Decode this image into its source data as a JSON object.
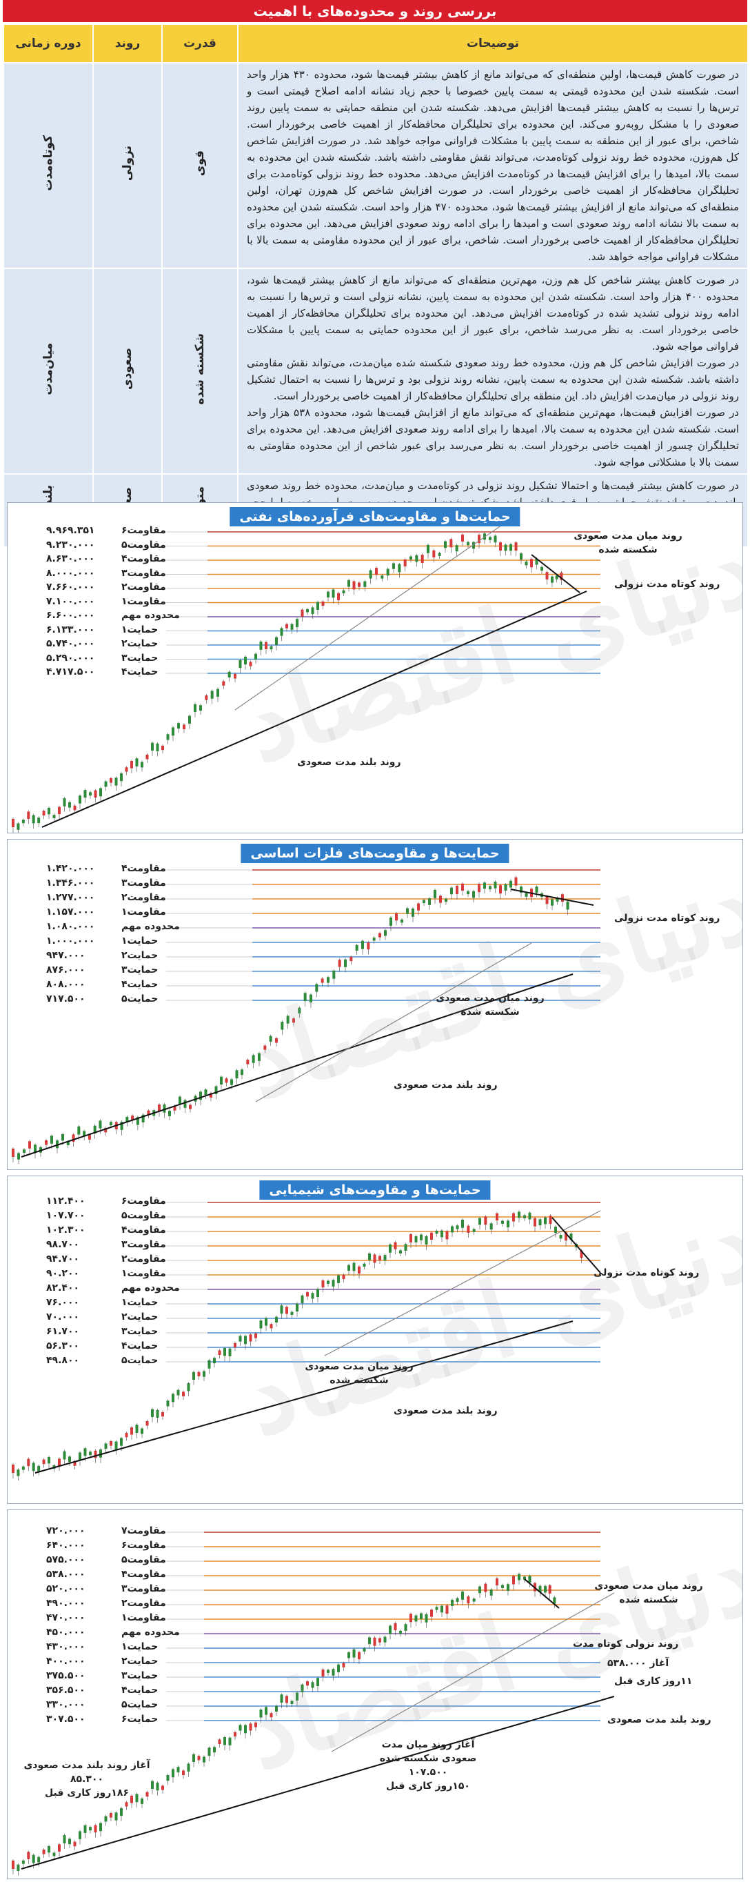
{
  "header": "بررسی روند و محدوده‌های با اهمیت",
  "table": {
    "columns": [
      "دوره زمانی",
      "روند",
      "قدرت",
      "توضیحات"
    ],
    "rows": [
      {
        "period": "کوتاه‌مدت",
        "trend": "نزولی",
        "strength": "قوی",
        "desc": "در صورت کاهش قیمت‌ها، اولین منطقه‌ای که می‌تواند مانع از کاهش بیشتر قیمت‌ها شود، محدوده ۴۳۰ هزار واحد است. شکسته شدن این محدوده قیمتی به سمت پایین خصوصا با حجم زیاد نشانه ادامه اصلاح قیمتی است و ترس‌ها را نسبت به کاهش بیشتر قیمت‌ها افزایش می‌دهد. شکسته شدن این منطقه حمایتی به سمت پایین روند صعودی را با مشکل روبه‌رو می‌کند. این محدوده برای تحلیلگران محافظه‌کار از اهمیت خاصی برخوردار است. شاخص، برای عبور از این منطقه به سمت پایین با مشکلات فراوانی مواجه خواهد شد. در صورت افزایش شاخص کل هم‌وزن، محدوده خط روند نزولی کوتاه‌مدت، می‌تواند نقش مقاومتی داشته باشد. شکسته شدن این محدوده به سمت بالا، امیدها را برای افزایش قیمت‌ها در کوتاه‌مدت افزایش می‌دهد. محدوده خط روند نزولی کوتاه‌مدت برای تحلیلگران محافظه‌کار از اهمیت خاصی برخوردار است. در صورت افزایش شاخص کل هم‌وزن تهران، اولین منطقه‌ای که می‌تواند مانع از افزایش بیشتر قیمت‌ها شود، محدوده ۴۷۰ هزار واحد است. شکسته شدن این محدوده به سمت بالا نشانه ادامه روند صعودی است و امیدها را برای ادامه روند صعودی افزایش می‌دهد. این محدوده برای تحلیلگران محافظه‌کار از اهمیت خاصی برخوردار است. شاخص، برای عبور از این محدوده مقاومتی به سمت بالا با مشکلات فراوانی مواجه خواهد شد."
      },
      {
        "period": "میان‌مدت",
        "trend": "صعودی",
        "strength": "شکسته شده",
        "desc": "در صورت کاهش بیشتر شاخص کل هم وزن، مهم‌ترین منطقه‌ای که می‌تواند مانع از کاهش بیشتر قیمت‌ها شود، محدوده ۴۰۰ هزار واحد است. شکسته شدن این محدوده به سمت پایین، نشانه نزولی است و ترس‌ها را نسبت به ادامه روند نزولی تشدید شده در کوتاه‌مدت افزایش می‌دهد. این محدوده برای تحلیلگران محافظه‌کار از اهمیت خاصی برخوردار است. به نظر می‌رسد شاخص، برای عبور از این محدوده حمایتی به سمت پایین با مشکلات فراوانی مواجه شود.\nدر صورت افزایش شاخص کل هم وزن، محدوده خط روند صعودی شکسته شده میان‌مدت، می‌تواند نقش مقاومتی داشته باشد. شکسته شدن این محدوده به سمت پایین، نشانه روند نزولی بود و ترس‌ها را نسبت به احتمال تشکیل روند نزولی در میان‌مدت افزایش داد. این منطقه برای تحلیلگران محافظه‌کار از اهمیت خاصی برخوردار است.\nدر صورت افزایش قیمت‌ها، مهم‌ترین منطقه‌ای که می‌تواند مانع از افزایش قیمت‌ها شود، محدوده ۵۳۸ هزار واحد است. شکسته شدن این محدوده به سمت بالا، امیدها را برای ادامه روند صعودی افزایش می‌دهد. این محدوده برای تحلیلگران چسور از اهمیت خاصی برخوردار است. به نظر می‌رسد برای عبور شاخص از این محدوده مقاومتی به سمت بالا با مشکلاتی مواجه شود."
      },
      {
        "period": "بلندمدت",
        "trend": "صعودی",
        "strength": "متوسط",
        "desc": "در صورت کاهش بیشتر قیمت‌ها و احتمالا تشکیل روند نزولی در کوتاه‌مدت و میان‌مدت، محدوده خط روند صعودی بلندمدت می‌تواند نقش حمایتی بسیار قوی داشته باشد. شکسته شدن این محدوده به سمت پایین مخصوصا با حجم زیاد نشانه نزولی خواهد بود و ترس‌ها را نسبت به ادامه‌دار بودن روند نزولی افزایش می‌دهد. این منطقه برای تحلیلگران محافظه‌کار از اهمیت خاصی برخوردار است."
      }
    ]
  },
  "watermark": "دنیای اقتصاد",
  "colors": {
    "header_bg": "#d81e2a",
    "th_bg": "#f7cf3b",
    "td_bg": "#dde7f4",
    "title_bg": "#2f7ecb",
    "resistance": "#e58a2b",
    "resistance_top": "#c23b2b",
    "support": "#4f8fd0",
    "key_zone": "#7b5aa6"
  },
  "charts": [
    {
      "title": "حمایت‌ها و مقاومت‌های فرآورده‌های نفتی",
      "levels": [
        {
          "label": "مقاومت۶",
          "value": "۹.۹۶۹.۳۵۱",
          "kind": "res"
        },
        {
          "label": "مقاومت۵",
          "value": "۹.۲۳۰.۰۰۰",
          "kind": "res"
        },
        {
          "label": "مقاومت۴",
          "value": "۸.۶۳۰.۰۰۰",
          "kind": "res"
        },
        {
          "label": "مقاومت۳",
          "value": "۸.۰۰۰.۰۰۰",
          "kind": "res"
        },
        {
          "label": "مقاومت۲",
          "value": "۷.۶۶۰.۰۰۰",
          "kind": "res"
        },
        {
          "label": "مقاومت۱",
          "value": "۷.۱۰۰.۰۰۰",
          "kind": "res"
        },
        {
          "label": "محدوده مهم",
          "value": "۶.۶۰۰.۰۰۰",
          "kind": "key"
        },
        {
          "label": "حمایت۱",
          "value": "۶.۱۳۳.۰۰۰",
          "kind": "sup"
        },
        {
          "label": "حمایت۲",
          "value": "۵.۷۴۰.۰۰۰",
          "kind": "sup"
        },
        {
          "label": "حمایت۳",
          "value": "۵.۲۹۰.۰۰۰",
          "kind": "sup"
        },
        {
          "label": "حمایت۴",
          "value": "۴.۷۱۷.۵۰۰",
          "kind": "sup"
        }
      ],
      "annotations": [
        "روند میان مدت صعودی شکسته شده",
        "روند کوتاه مدت نزولی",
        "روند بلند مدت صعودی"
      ]
    },
    {
      "title": "حمایت‌ها و مقاومت‌های فلزات اساسی",
      "levels": [
        {
          "label": "مقاومت۴",
          "value": "۱.۴۲۰.۰۰۰",
          "kind": "res"
        },
        {
          "label": "مقاومت۳",
          "value": "۱.۳۴۶.۰۰۰",
          "kind": "res"
        },
        {
          "label": "مقاومت۲",
          "value": "۱.۲۷۷.۰۰۰",
          "kind": "res"
        },
        {
          "label": "مقاومت۱",
          "value": "۱.۱۵۷.۰۰۰",
          "kind": "res"
        },
        {
          "label": "محدوده مهم",
          "value": "۱.۰۸۰.۰۰۰",
          "kind": "key"
        },
        {
          "label": "حمایت۱",
          "value": "۱.۰۰۰.۰۰۰",
          "kind": "sup"
        },
        {
          "label": "حمایت۲",
          "value": "۹۴۷.۰۰۰",
          "kind": "sup"
        },
        {
          "label": "حمایت۳",
          "value": "۸۷۶.۰۰۰",
          "kind": "sup"
        },
        {
          "label": "حمایت۴",
          "value": "۸۰۸.۰۰۰",
          "kind": "sup"
        },
        {
          "label": "حمایت۵",
          "value": "۷۱۷.۵۰۰",
          "kind": "sup"
        }
      ],
      "annotations": [
        "روند کوتاه مدت نزولی",
        "روند میان مدت صعودی شکسته شده",
        "روند بلند مدت صعودی"
      ]
    },
    {
      "title": "حمایت‌ها و مقاومت‌های شیمیایی",
      "levels": [
        {
          "label": "مقاومت۶",
          "value": "۱۱۲.۴۰۰",
          "kind": "res"
        },
        {
          "label": "مقاومت۵",
          "value": "۱۰۷.۷۰۰",
          "kind": "res"
        },
        {
          "label": "مقاومت۴",
          "value": "۱۰۲.۳۰۰",
          "kind": "res"
        },
        {
          "label": "مقاومت۳",
          "value": "۹۸.۷۰۰",
          "kind": "res"
        },
        {
          "label": "مقاومت۲",
          "value": "۹۴.۷۰۰",
          "kind": "res"
        },
        {
          "label": "مقاومت۱",
          "value": "۹۰.۲۰۰",
          "kind": "res"
        },
        {
          "label": "محدوده مهم",
          "value": "۸۲.۴۰۰",
          "kind": "key"
        },
        {
          "label": "حمایت۱",
          "value": "۷۶.۰۰۰",
          "kind": "sup"
        },
        {
          "label": "حمایت۲",
          "value": "۷۰.۰۰۰",
          "kind": "sup"
        },
        {
          "label": "حمایت۳",
          "value": "۶۱.۷۰۰",
          "kind": "sup"
        },
        {
          "label": "حمایت۴",
          "value": "۵۶.۳۰۰",
          "kind": "sup"
        },
        {
          "label": "حمایت۵",
          "value": "۴۹.۸۰۰",
          "kind": "sup"
        }
      ],
      "annotations": [
        "روند کوتاه مدت نزولی",
        "روند میان مدت صعودی شکسته شده",
        "روند بلند مدت صعودی"
      ]
    },
    {
      "title": "",
      "levels": [
        {
          "label": "مقاومت۷",
          "value": "۷۲۰.۰۰۰",
          "kind": "res"
        },
        {
          "label": "مقاومت۶",
          "value": "۶۴۰.۰۰۰",
          "kind": "res"
        },
        {
          "label": "مقاومت۵",
          "value": "۵۷۵.۰۰۰",
          "kind": "res"
        },
        {
          "label": "مقاومت۴",
          "value": "۵۳۸.۰۰۰",
          "kind": "res"
        },
        {
          "label": "مقاومت۳",
          "value": "۵۲۰.۰۰۰",
          "kind": "res"
        },
        {
          "label": "مقاومت۲",
          "value": "۴۹۰.۰۰۰",
          "kind": "res"
        },
        {
          "label": "مقاومت۱",
          "value": "۴۷۰.۰۰۰",
          "kind": "res"
        },
        {
          "label": "محدوده مهم",
          "value": "۴۵۰.۰۰۰",
          "kind": "key"
        },
        {
          "label": "حمایت۱",
          "value": "۴۳۰.۰۰۰",
          "kind": "sup"
        },
        {
          "label": "حمایت۲",
          "value": "۴۰۰.۰۰۰",
          "kind": "sup"
        },
        {
          "label": "حمایت۳",
          "value": "۳۷۵.۵۰۰",
          "kind": "sup"
        },
        {
          "label": "حمایت۴",
          "value": "۳۵۶.۵۰۰",
          "kind": "sup"
        },
        {
          "label": "حمایت۵",
          "value": "۳۳۰.۰۰۰",
          "kind": "sup"
        },
        {
          "label": "حمایت۶",
          "value": "۳۰۷.۵۰۰",
          "kind": "sup"
        }
      ],
      "annotations": [
        "روند میان مدت صعودی شکسته شده",
        "روند نزولی کوتاه مدت",
        "آغاز ۵۳۸.۰۰۰",
        "۱۱روز کاری قبل",
        "روند بلند مدت صعودی",
        "آغاز روند میان مدت صعودی شکسته شده",
        "۱۰۷.۵۰۰",
        "۱۵۰روز کاری قبل",
        "آغاز روند بلند مدت صعودی",
        "۸۵.۳۰۰",
        "۱۸۶روز کاری قبل"
      ]
    }
  ]
}
